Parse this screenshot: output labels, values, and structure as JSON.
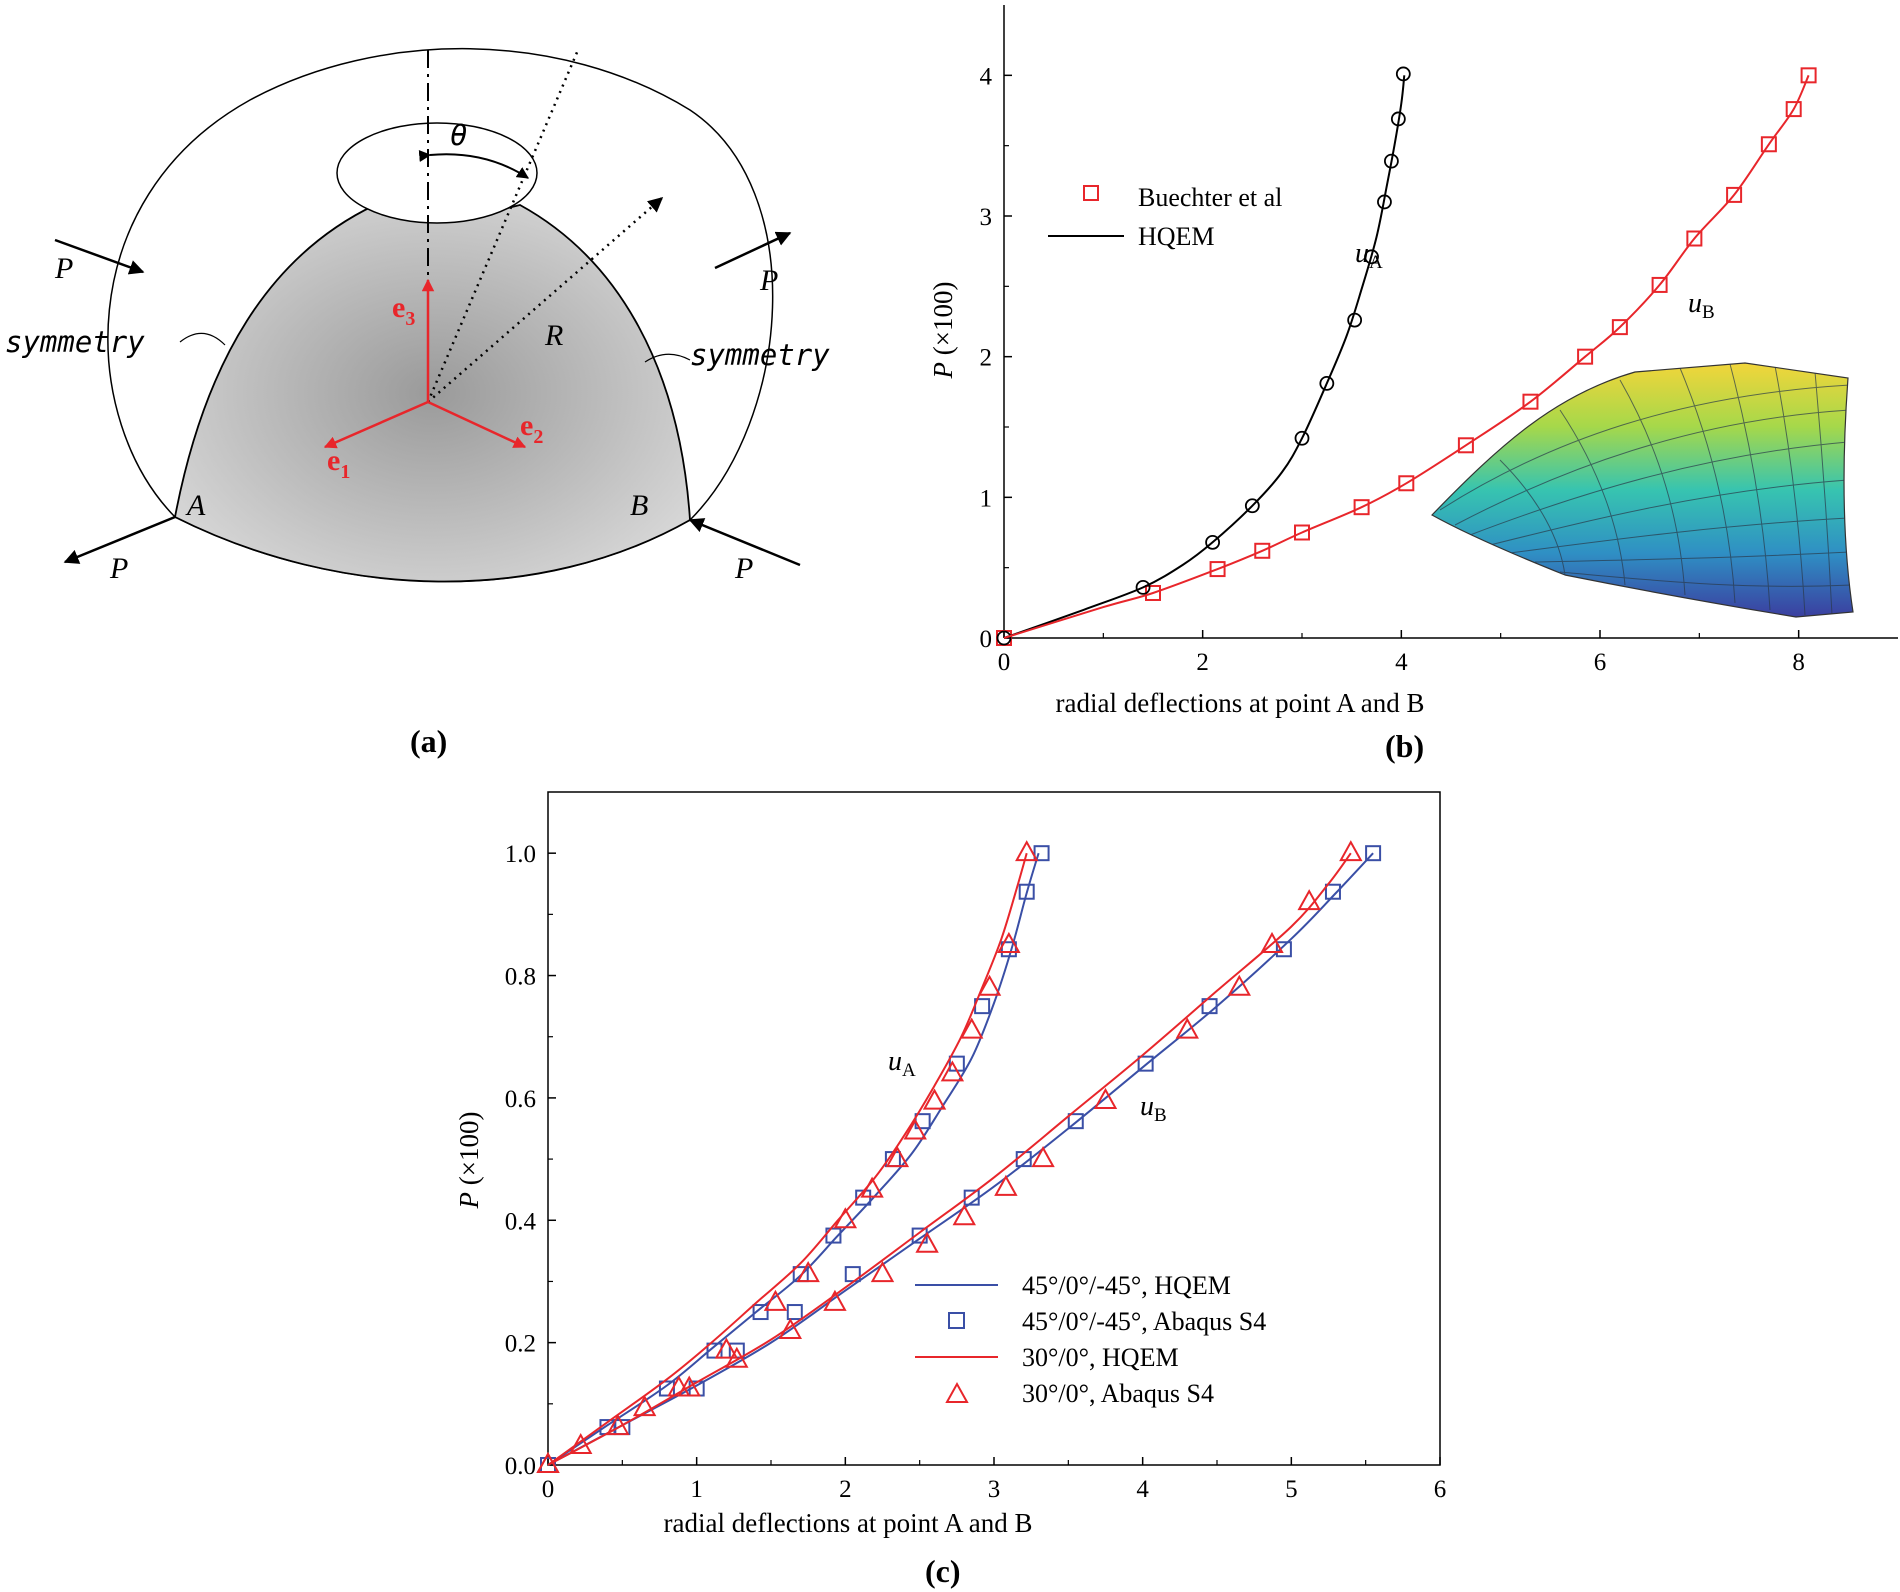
{
  "panel_a": {
    "label": "(a)",
    "theta": "θ",
    "R": "R",
    "A": "A",
    "B": "B",
    "P": "P",
    "symmetry_left": "symmetry",
    "symmetry_right": "symmetry",
    "e_base": "e",
    "e1_sub": "1",
    "e2_sub": "2",
    "e3_sub": "3",
    "vector_color": "#e8262b",
    "shell_fill": "#c4c4c4"
  },
  "panel_b": {
    "label": "(b)",
    "ylabel_p": "P",
    "ylabel_rest": " (×100)",
    "ua_base": "u",
    "ua_sub": "A",
    "ub_base": "u",
    "ub_sub": "B"
  },
  "panel_c": {
    "label": "(c)",
    "ylabel_p": "P",
    "ylabel_rest": " (×100)",
    "ua_base": "u",
    "ua_sub": "A",
    "ub_base": "u",
    "ub_sub": "B"
  },
  "chart_data": [
    {
      "id": "b",
      "type": "line",
      "title": "",
      "xlabel": "radial deflections at point A and B",
      "ylabel": "P (×100)",
      "xlim": [
        0,
        9
      ],
      "ylim": [
        0,
        4.5
      ],
      "xticks": [
        0,
        2,
        4,
        6,
        8
      ],
      "yticks": [
        0,
        1,
        2,
        3,
        4
      ],
      "legend_position": "upper-left",
      "series": [
        {
          "name": "Buechter et al",
          "kind": "markers",
          "marker": "square",
          "color": "#e8262b",
          "legend": true,
          "x": [
            0,
            1.5,
            2.15,
            2.6,
            3.0,
            3.6,
            4.05,
            4.65,
            5.3,
            5.85,
            6.2,
            6.6,
            6.95,
            7.35,
            7.7,
            7.95,
            8.1
          ],
          "y": [
            0,
            0.32,
            0.49,
            0.62,
            0.75,
            0.93,
            1.1,
            1.37,
            1.68,
            2.0,
            2.21,
            2.51,
            2.84,
            3.15,
            3.51,
            3.76,
            4.0
          ]
        },
        {
          "name": "Buechter et al (uA)",
          "kind": "markers",
          "marker": "circle",
          "color": "#000000",
          "legend": false,
          "x": [
            0,
            1.4,
            2.1,
            2.5,
            3.0,
            3.25,
            3.53,
            3.7,
            3.83,
            3.9,
            3.97,
            4.02
          ],
          "y": [
            0,
            0.36,
            0.68,
            0.94,
            1.42,
            1.81,
            2.26,
            2.71,
            3.1,
            3.39,
            3.69,
            4.01
          ]
        },
        {
          "name": "HQEM",
          "kind": "line",
          "color": "#000000",
          "legend": true,
          "x": [
            0,
            0.8,
            1.4,
            1.8,
            2.1,
            2.5,
            2.8,
            3.0,
            3.25,
            3.45,
            3.6,
            3.75,
            3.85,
            3.93,
            4.0,
            4.03
          ],
          "y": [
            0,
            0.2,
            0.36,
            0.52,
            0.68,
            0.94,
            1.18,
            1.42,
            1.81,
            2.15,
            2.48,
            2.85,
            3.2,
            3.5,
            3.8,
            4.0
          ]
        },
        {
          "name": "HQEM (uB)",
          "kind": "line",
          "color": "#e8262b",
          "legend": false,
          "x": [
            0,
            1.0,
            1.5,
            2.15,
            2.6,
            3.0,
            3.6,
            4.05,
            4.65,
            5.3,
            5.85,
            6.2,
            6.6,
            6.95,
            7.35,
            7.7,
            7.95,
            8.1
          ],
          "y": [
            0,
            0.22,
            0.32,
            0.49,
            0.62,
            0.75,
            0.93,
            1.1,
            1.37,
            1.68,
            2.0,
            2.21,
            2.51,
            2.84,
            3.15,
            3.51,
            3.76,
            4.0
          ]
        }
      ],
      "annotations": [
        "uA",
        "uB"
      ]
    },
    {
      "id": "c",
      "type": "line",
      "title": "",
      "xlabel": "radial deflections at point A and B",
      "ylabel": "P (×100)",
      "xlim": [
        0,
        6
      ],
      "ylim": [
        0,
        1.1
      ],
      "xticks": [
        0,
        1,
        2,
        3,
        4,
        5,
        6
      ],
      "yticks": [
        0.0,
        0.2,
        0.4,
        0.6,
        0.8,
        1.0
      ],
      "ytick_labels": [
        "0.0",
        "0.2",
        "0.4",
        "0.6",
        "0.8",
        "1.0"
      ],
      "legend_position": "lower-right",
      "series": [
        {
          "name": "45°/0°/-45°, HQEM",
          "kind": "line",
          "color": "#3a4fa6",
          "legend": true,
          "x": [
            0,
            0.4,
            0.8,
            1.1,
            1.4,
            1.7,
            1.95,
            2.2,
            2.45,
            2.65,
            2.85,
            3.0,
            3.12,
            3.22,
            3.3
          ],
          "y": [
            0,
            0.065,
            0.13,
            0.19,
            0.25,
            0.31,
            0.375,
            0.44,
            0.51,
            0.585,
            0.665,
            0.755,
            0.845,
            0.935,
            1.0
          ]
        },
        {
          "name": "45°/0°/-45°, HQEM (uB)",
          "kind": "line",
          "color": "#3a4fa6",
          "legend": false,
          "x": [
            0,
            0.5,
            1.0,
            1.5,
            2.0,
            2.5,
            3.0,
            3.5,
            4.0,
            4.5,
            5.0,
            5.3,
            5.55
          ],
          "y": [
            0,
            0.065,
            0.13,
            0.2,
            0.285,
            0.37,
            0.455,
            0.55,
            0.65,
            0.75,
            0.86,
            0.935,
            1.0
          ]
        },
        {
          "name": "45°/0°/-45°, Abaqus S4",
          "kind": "markers",
          "marker": "square",
          "color": "#3a4fa6",
          "legend": true,
          "x": [
            0,
            0.4,
            0.8,
            1.12,
            1.43,
            1.7,
            1.92,
            2.12,
            2.32,
            2.52,
            2.75,
            2.92,
            3.1,
            3.22,
            3.32
          ],
          "y": [
            0,
            0.062,
            0.125,
            0.187,
            0.25,
            0.312,
            0.375,
            0.437,
            0.5,
            0.562,
            0.656,
            0.75,
            0.843,
            0.937,
            1.0
          ],
          "x_b": [
            0,
            0.5,
            1.0,
            1.27,
            1.66,
            2.05,
            2.5,
            2.85,
            3.2,
            3.55,
            4.02,
            4.45,
            4.95,
            5.28,
            5.55
          ],
          "y_b": [
            0,
            0.062,
            0.125,
            0.187,
            0.25,
            0.312,
            0.375,
            0.437,
            0.5,
            0.562,
            0.656,
            0.75,
            0.843,
            0.937,
            1.0
          ]
        },
        {
          "name": "30°/0°, HQEM",
          "kind": "line",
          "color": "#e8262b",
          "legend": true,
          "x": [
            0,
            0.4,
            0.8,
            1.1,
            1.4,
            1.7,
            1.95,
            2.2,
            2.4,
            2.6,
            2.78,
            2.92,
            3.05,
            3.15,
            3.22
          ],
          "y": [
            0,
            0.07,
            0.14,
            0.2,
            0.265,
            0.33,
            0.4,
            0.47,
            0.54,
            0.62,
            0.7,
            0.78,
            0.86,
            0.94,
            1.0
          ]
        },
        {
          "name": "30°/0°, HQEM (uB)",
          "kind": "line",
          "color": "#e8262b",
          "legend": false,
          "x": [
            0,
            0.5,
            1.0,
            1.5,
            2.0,
            2.5,
            3.0,
            3.5,
            4.0,
            4.5,
            5.0,
            5.25,
            5.4
          ],
          "y": [
            0,
            0.065,
            0.135,
            0.205,
            0.29,
            0.38,
            0.47,
            0.57,
            0.67,
            0.775,
            0.88,
            0.95,
            1.0
          ]
        },
        {
          "name": "30°/0°, Abaqus S4",
          "kind": "markers",
          "marker": "triangle",
          "color": "#e8262b",
          "legend": true,
          "x": [
            0,
            0.47,
            0.88,
            1.2,
            1.53,
            1.75,
            2.0,
            2.18,
            2.35,
            2.47,
            2.6,
            2.72,
            2.85,
            2.97,
            3.1,
            3.22
          ],
          "y": [
            0,
            0.062,
            0.125,
            0.187,
            0.265,
            0.312,
            0.4,
            0.45,
            0.5,
            0.545,
            0.594,
            0.64,
            0.71,
            0.78,
            0.85,
            1.0
          ],
          "x_b": [
            0,
            0.22,
            0.65,
            0.95,
            1.27,
            1.63,
            1.93,
            2.25,
            2.55,
            2.8,
            3.08,
            3.33,
            3.75,
            4.3,
            4.65,
            4.87,
            5.12,
            5.4
          ],
          "y_b": [
            0,
            0.031,
            0.093,
            0.125,
            0.172,
            0.219,
            0.265,
            0.312,
            0.36,
            0.405,
            0.453,
            0.5,
            0.595,
            0.71,
            0.78,
            0.85,
            0.92,
            1.0
          ]
        }
      ],
      "annotations": [
        "uA",
        "uB"
      ]
    }
  ]
}
